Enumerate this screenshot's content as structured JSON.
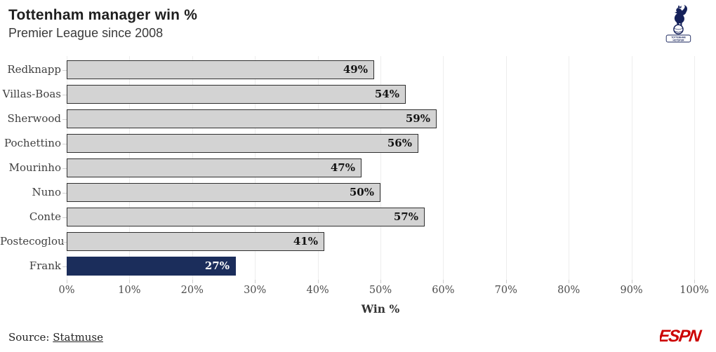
{
  "header": {
    "title": "Tottenham manager win %",
    "subtitle": "Premier League since 2008"
  },
  "logo": {
    "club": "Tottenham Hotspur crest",
    "banner_line1": "TOTTENHAM",
    "banner_line2": "HOTSPUR",
    "navy": "#15215a"
  },
  "chart_data": {
    "type": "bar",
    "orientation": "horizontal",
    "title": "Tottenham manager win %",
    "subtitle": "Premier League since 2008",
    "categories": [
      "Redknapp",
      "Villas-Boas",
      "Sherwood",
      "Pochettino",
      "Mourinho",
      "Nuno",
      "Conte",
      "Postecoglou",
      "Frank"
    ],
    "values": [
      49,
      54,
      59,
      56,
      47,
      50,
      57,
      41,
      27
    ],
    "value_labels": [
      "49%",
      "54%",
      "59%",
      "56%",
      "47%",
      "50%",
      "57%",
      "41%",
      "27%"
    ],
    "xlabel": "Win %",
    "xlim": [
      0,
      100
    ],
    "x_tick_values": [
      0,
      10,
      20,
      30,
      40,
      50,
      60,
      70,
      80,
      90,
      100
    ],
    "x_tick_labels": [
      "0%",
      "10%",
      "20%",
      "30%",
      "40%",
      "50%",
      "60%",
      "70%",
      "80%",
      "90%",
      "100%"
    ],
    "grid": true,
    "legend": false,
    "bar_color": "#d3d3d3",
    "bar_border_color": "#2f2f2f",
    "highlight_index": 8,
    "highlight_color": "#1b2d5b",
    "highlight_text_color": "#ffffff"
  },
  "footer": {
    "source_prefix": "Source: ",
    "source_link": "Statmuse",
    "brand": "ESPN",
    "brand_color": "#cc0000"
  }
}
